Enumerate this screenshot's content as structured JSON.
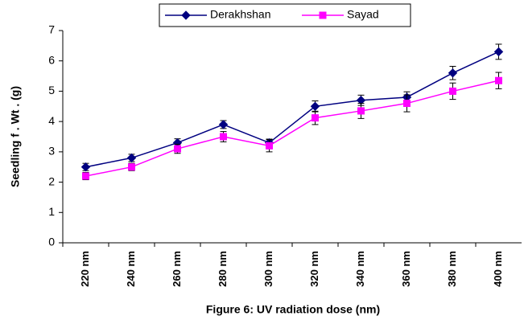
{
  "chart_data": {
    "type": "line",
    "x_label": "Figure 6: UV radiation dose (nm)",
    "y_label": "Seedling f . Wt . (g)",
    "categories": [
      "220 nm",
      "240 nm",
      "260 nm",
      "280 nm",
      "300 nm",
      "320 nm",
      "340 nm",
      "360 nm",
      "380 nm",
      "400 nm"
    ],
    "series": [
      {
        "name": "Derakhshan",
        "color": "#000080",
        "marker": "diamond",
        "values": [
          2.5,
          2.8,
          3.3,
          3.9,
          3.3,
          4.5,
          4.7,
          4.8,
          5.6,
          6.3
        ],
        "errors": [
          0.12,
          0.12,
          0.13,
          0.13,
          0.12,
          0.18,
          0.17,
          0.18,
          0.22,
          0.25
        ]
      },
      {
        "name": "Sayad",
        "color": "#ff00ff",
        "marker": "square",
        "values": [
          2.2,
          2.5,
          3.1,
          3.5,
          3.2,
          4.12,
          4.35,
          4.6,
          5.0,
          5.35
        ],
        "errors": [
          0.12,
          0.12,
          0.15,
          0.17,
          0.2,
          0.22,
          0.25,
          0.28,
          0.27,
          0.27
        ]
      }
    ],
    "ylim": [
      0,
      7
    ],
    "yticks": [
      0,
      1,
      2,
      3,
      4,
      5,
      6,
      7
    ],
    "grid": false,
    "legend": "top"
  }
}
